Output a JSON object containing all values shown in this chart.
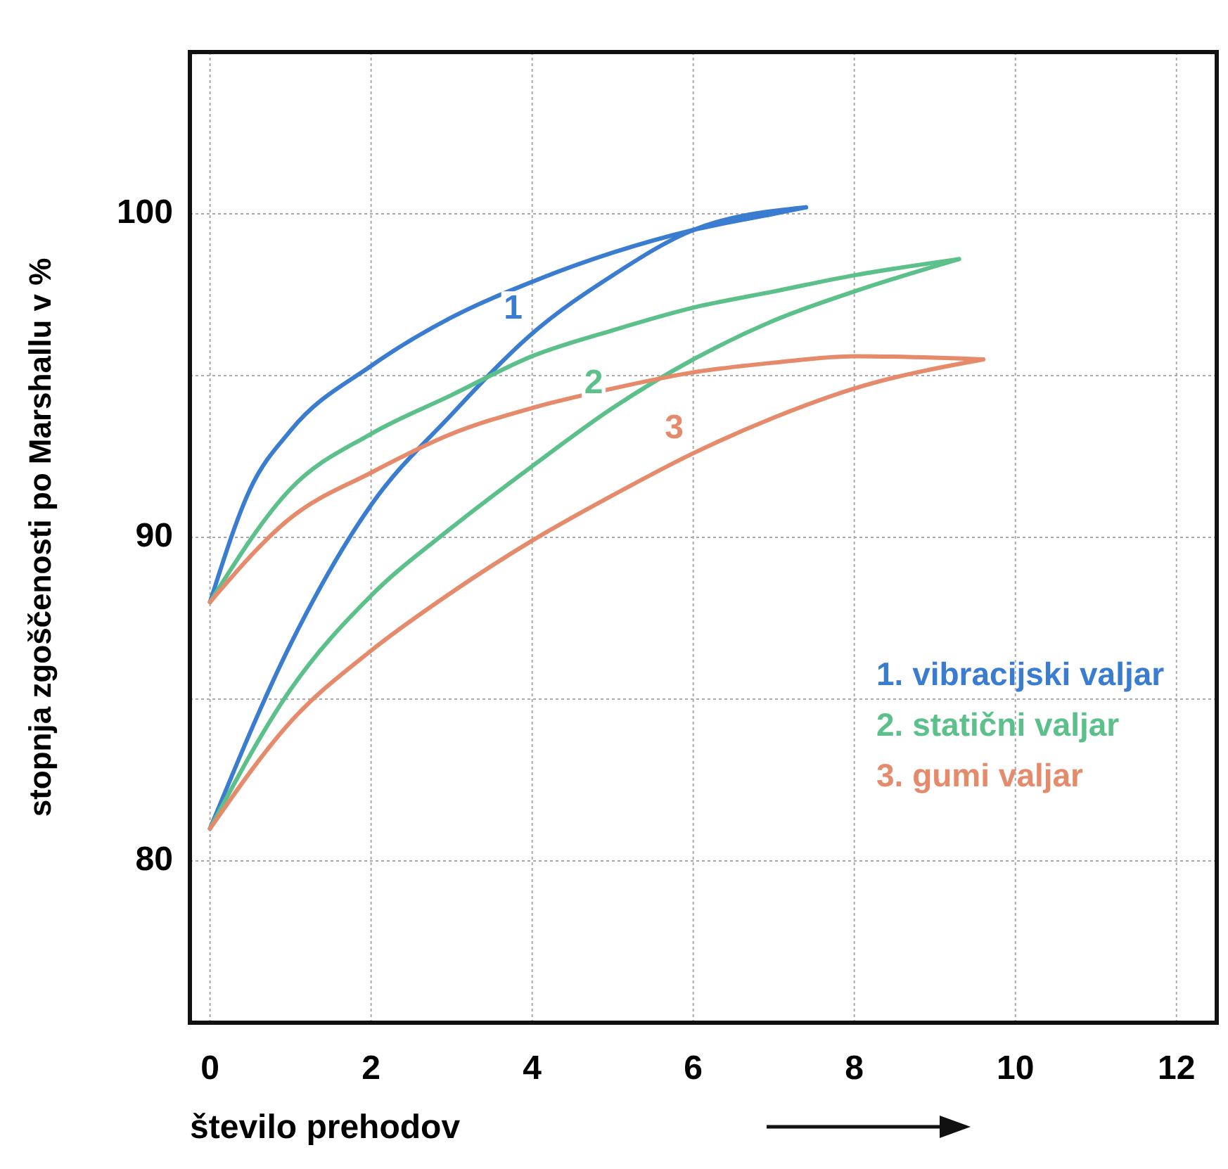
{
  "chart_data": {
    "type": "line",
    "xlabel": "število prehodov",
    "ylabel": "stopnja zgoščenosti po Marshallu v %",
    "xlim": [
      -0.25,
      12.5
    ],
    "xticks": [
      0,
      2,
      4,
      6,
      8,
      10,
      12
    ],
    "ylim": [
      75,
      105
    ],
    "yticks": [
      {
        "value": 75,
        "label": null
      },
      80,
      {
        "value": 85,
        "label": null
      },
      90,
      {
        "value": 95,
        "label": null
      },
      100,
      {
        "value": 105,
        "label": null
      }
    ],
    "grid": true,
    "legend": "bottom right",
    "line_style": "solid",
    "series": [
      {
        "name": "1. vibracijski valjar",
        "color": "#3a7cd0",
        "x": [
          0,
          0.5,
          1,
          2,
          3,
          4,
          5,
          6,
          7,
          7.4
        ],
        "values": [
          88,
          91.5,
          93.3,
          95.3,
          96.8,
          97.9,
          98.8,
          99.5,
          100,
          100.2
        ]
      },
      {
        "color": "#3a7cd0",
        "x": [
          0,
          1,
          2,
          3,
          4,
          5,
          6,
          7.4
        ],
        "values": [
          81,
          86.7,
          91,
          93.8,
          96.3,
          98.1,
          99.5,
          100.2
        ]
      },
      {
        "name": "2. statični valjar",
        "color": "#5cc08a",
        "x": [
          0,
          1,
          2,
          3,
          4,
          5,
          6,
          7,
          8,
          9.3
        ],
        "values": [
          88,
          91.5,
          93.2,
          94.4,
          95.6,
          96.4,
          97.1,
          97.6,
          98.1,
          98.6
        ]
      },
      {
        "color": "#5cc08a",
        "x": [
          0,
          1,
          2,
          3,
          4,
          5,
          6,
          7,
          8,
          9.3
        ],
        "values": [
          81,
          85.3,
          88.2,
          90.3,
          92.2,
          94,
          95.5,
          96.7,
          97.6,
          98.6
        ]
      },
      {
        "name": "3. gumi valjar",
        "color": "#e58a6a",
        "x": [
          0,
          1,
          2,
          3,
          4,
          5,
          6,
          7,
          8,
          9.6
        ],
        "values": [
          88,
          90.6,
          92,
          93.2,
          94,
          94.6,
          95.1,
          95.4,
          95.6,
          95.5
        ]
      },
      {
        "color": "#e58a6a",
        "x": [
          0,
          1,
          2,
          3,
          4,
          5,
          6,
          7,
          8,
          9.6
        ],
        "values": [
          81,
          84.3,
          86.5,
          88.3,
          89.9,
          91.3,
          92.6,
          93.7,
          94.6,
          95.5
        ]
      }
    ],
    "annotations": [
      {
        "text": "1",
        "x": 4,
        "y": 96.3
      },
      {
        "text": "2",
        "x": 5,
        "y": 94
      },
      {
        "text": "3",
        "x": 6,
        "y": 92.6
      }
    ]
  }
}
